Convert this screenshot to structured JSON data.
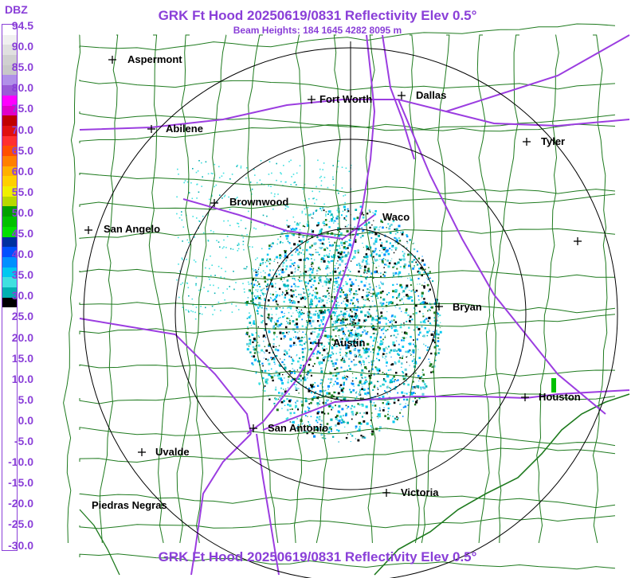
{
  "header": {
    "title": "GRK Ft Hood 20250619/0831 Reflectivity Elev 0.5°",
    "subtitle": "Beam Heights: 184 1645 4282 8095 m"
  },
  "footer": {
    "title": "GRK Ft Hood 20250619/0831 Reflectivity Elev 0.5°"
  },
  "legend": {
    "unit": "DBZ",
    "levels": [
      "94.5",
      "90.0",
      "85.0",
      "80.0",
      "75.0",
      "70.0",
      "65.0",
      "60.0",
      "55.0",
      "50.0",
      "45.0",
      "40.0",
      "35.0",
      "30.0",
      "25.0",
      "20.0",
      "15.0",
      "10.0",
      "5.0",
      "0.0",
      "-5.0",
      "-10.0",
      "-15.0",
      "-20.0",
      "-25.0",
      "-30.0"
    ],
    "colors": [
      "#ffffff",
      "#f0f0f0",
      "#e0e0e0",
      "#d0d0d0",
      "#c8c8c8",
      "#b090e8",
      "#9a5cd6",
      "#ff00ff",
      "#e000c8",
      "#c00000",
      "#e01010",
      "#ff3030",
      "#ff5000",
      "#ff8000",
      "#ffb000",
      "#ffd000",
      "#f0f000",
      "#b8d800",
      "#00a000",
      "#00c000",
      "#00e000",
      "#0030a0",
      "#0050ff",
      "#0090ff",
      "#00c8f0",
      "#40e0e0",
      "#00b0b0",
      "#000000",
      "#ffffff",
      "#ffffff",
      "#ffffff",
      "#ffffff",
      "#ffffff",
      "#ffffff",
      "#ffffff",
      "#ffffff",
      "#ffffff",
      "#ffffff",
      "#ffffff",
      "#ffffff",
      "#ffffff",
      "#ffffff",
      "#ffffff",
      "#ffffff",
      "#ffffff",
      "#ffffff",
      "#ffffff",
      "#ffffff",
      "#ffffff",
      "#ffffff",
      "#ffffff",
      "#ffffff"
    ]
  },
  "cities": [
    {
      "name": "Aspermont"
    },
    {
      "name": "Fort Worth"
    },
    {
      "name": "Dallas"
    },
    {
      "name": "Abilene"
    },
    {
      "name": "Tyler"
    },
    {
      "name": "Brownwood"
    },
    {
      "name": "Waco"
    },
    {
      "name": "San Angelo"
    },
    {
      "name": "Bryan"
    },
    {
      "name": "Austin"
    },
    {
      "name": "Houston"
    },
    {
      "name": "San Antonio"
    },
    {
      "name": "Uvalde"
    },
    {
      "name": "Victoria"
    },
    {
      "name": "Piedras Negras"
    }
  ],
  "colors": {
    "title": "#8a3fd8",
    "county_lines": "#1e7a1e",
    "highways": "#9b3de0",
    "range_rings": "#000000"
  }
}
